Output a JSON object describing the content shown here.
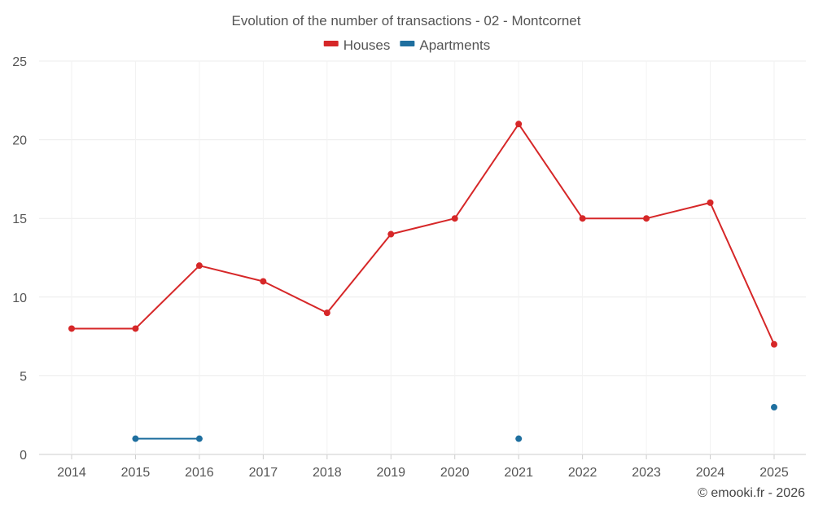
{
  "chart_data": {
    "type": "line",
    "title": "Evolution of the number of transactions - 02 - Montcornet",
    "categories": [
      "2014",
      "2015",
      "2016",
      "2017",
      "2018",
      "2019",
      "2020",
      "2021",
      "2022",
      "2023",
      "2024",
      "2025"
    ],
    "series": [
      {
        "name": "Houses",
        "color": "#d62728",
        "values": [
          8,
          8,
          12,
          11,
          9,
          14,
          15,
          21,
          15,
          15,
          16,
          7
        ]
      },
      {
        "name": "Apartments",
        "color": "#1f6f9f",
        "values": [
          null,
          1,
          1,
          null,
          null,
          null,
          null,
          1,
          null,
          null,
          null,
          3
        ]
      }
    ],
    "ylim": [
      0,
      25
    ],
    "yticks": [
      "0",
      "5",
      "10",
      "15",
      "20",
      "25"
    ],
    "xlabel": "",
    "ylabel": "",
    "legend_position": "top-center",
    "grid": true
  },
  "credit": "© emooki.fr - 2026"
}
